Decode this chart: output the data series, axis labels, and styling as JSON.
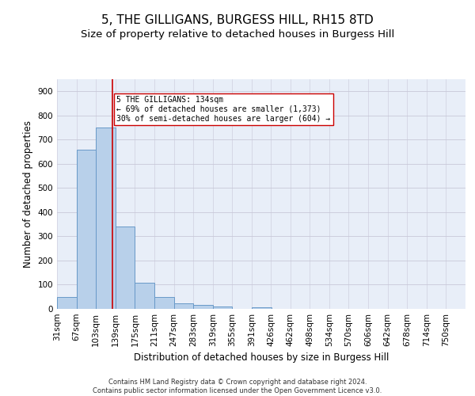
{
  "title": "5, THE GILLIGANS, BURGESS HILL, RH15 8TD",
  "subtitle": "Size of property relative to detached houses in Burgess Hill",
  "xlabel": "Distribution of detached houses by size in Burgess Hill",
  "ylabel": "Number of detached properties",
  "footer_line1": "Contains HM Land Registry data © Crown copyright and database right 2024.",
  "footer_line2": "Contains public sector information licensed under the Open Government Licence v3.0.",
  "bin_edges": [
    31,
    67,
    103,
    139,
    175,
    211,
    247,
    283,
    319,
    355,
    391,
    426,
    462,
    498,
    534,
    570,
    606,
    642,
    678,
    714,
    750
  ],
  "bar_heights": [
    50,
    660,
    750,
    340,
    107,
    50,
    23,
    15,
    10,
    0,
    8,
    0,
    0,
    0,
    0,
    0,
    0,
    0,
    0,
    0
  ],
  "bar_color": "#b8d0ea",
  "bar_edge_color": "#6899c8",
  "bar_edge_width": 0.7,
  "vline_x": 134,
  "vline_color": "#cc0000",
  "annotation_text": "5 THE GILLIGANS: 134sqm\n← 69% of detached houses are smaller (1,373)\n30% of semi-detached houses are larger (604) →",
  "annotation_box_color": "#ffffff",
  "annotation_box_edge": "#cc0000",
  "ylim": [
    0,
    950
  ],
  "yticks": [
    0,
    100,
    200,
    300,
    400,
    500,
    600,
    700,
    800,
    900
  ],
  "background_color": "#e8eef8",
  "grid_color": "#c8c8d8",
  "title_fontsize": 11,
  "subtitle_fontsize": 9.5,
  "xlabel_fontsize": 8.5,
  "ylabel_fontsize": 8.5,
  "tick_fontsize": 7.5,
  "annotation_fontsize": 7,
  "footer_fontsize": 6
}
